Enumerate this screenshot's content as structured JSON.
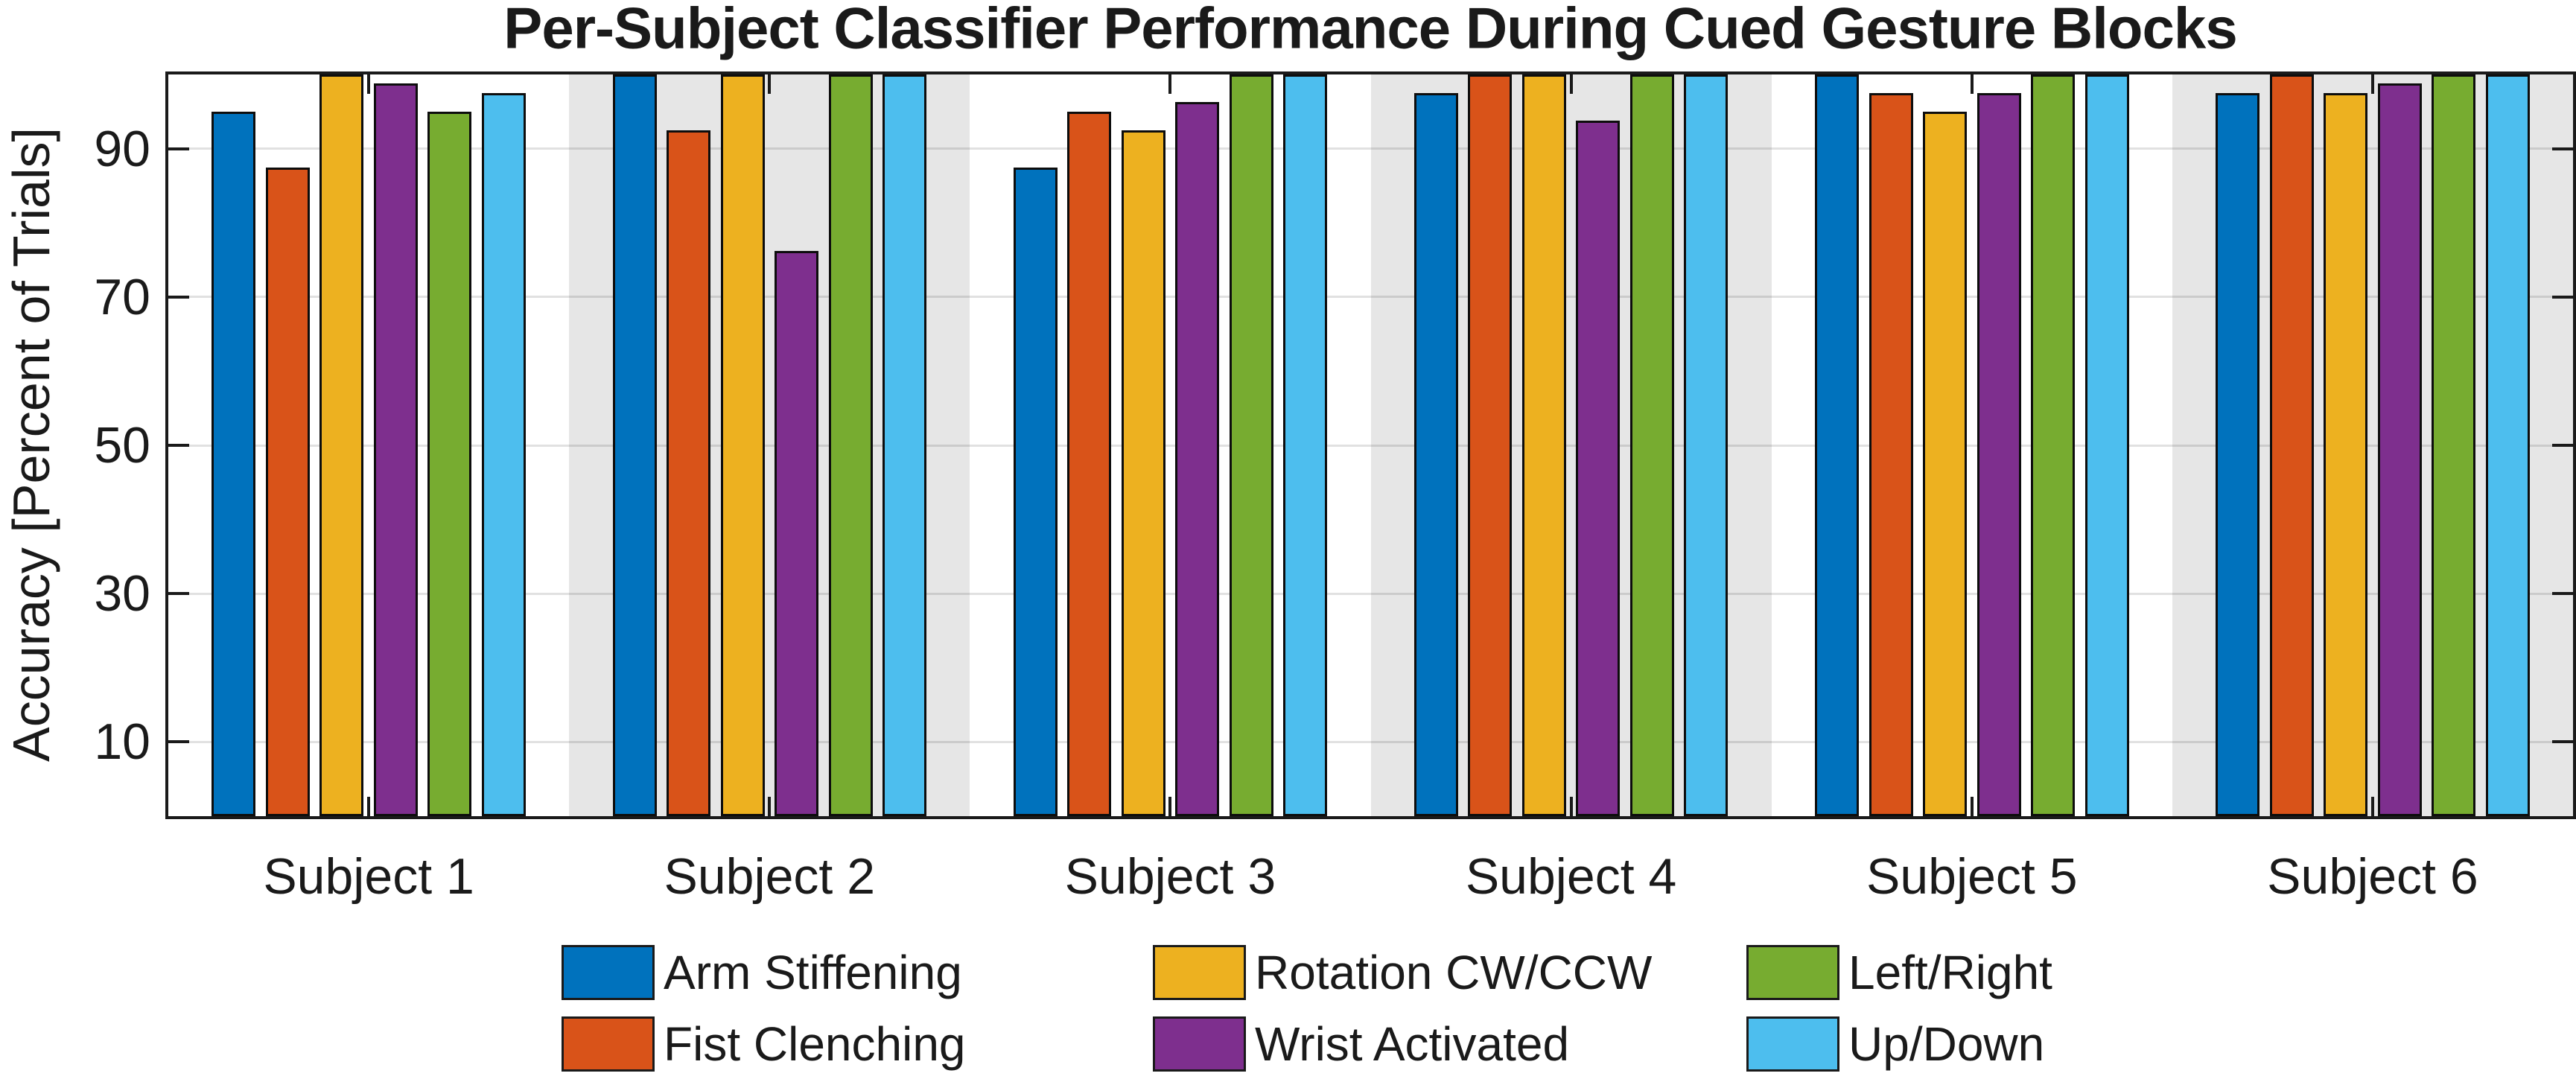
{
  "chart_data": {
    "type": "bar",
    "title": "Per-Subject Classifier Performance During Cued Gesture Blocks",
    "xlabel": "",
    "ylabel": "Accuracy [Percent of Trials]",
    "categories": [
      "Subject 1",
      "Subject 2",
      "Subject 3",
      "Subject 4",
      "Subject 5",
      "Subject 6"
    ],
    "series": [
      {
        "name": "Arm Stiffening",
        "color": "#0072BD",
        "values": [
          95,
          100,
          87.5,
          97.5,
          100,
          97.5
        ]
      },
      {
        "name": "Fist Clenching",
        "color": "#D95319",
        "values": [
          87.5,
          92.5,
          95,
          100,
          97.5,
          100
        ]
      },
      {
        "name": "Rotation CW/CCW",
        "color": "#EDB120",
        "values": [
          100,
          100,
          92.5,
          100,
          95,
          97.5
        ]
      },
      {
        "name": "Wrist Activated",
        "color": "#7E2F8E",
        "values": [
          98.75,
          76.25,
          96.25,
          93.75,
          97.5,
          98.75
        ]
      },
      {
        "name": "Left/Right",
        "color": "#77AC30",
        "values": [
          95,
          100,
          100,
          100,
          100,
          100
        ]
      },
      {
        "name": "Up/Down",
        "color": "#4DBEEE",
        "values": [
          97.5,
          100,
          100,
          100,
          100,
          100
        ]
      }
    ],
    "yticks": [
      10,
      30,
      50,
      70,
      90
    ],
    "ylim": [
      0,
      100
    ],
    "grid": true,
    "grid_color": "rgba(26,26,26,0.13)",
    "frame_color": "#1a1a1a",
    "band_color": "#E6E6E6",
    "banded_category_indexes": [
      1,
      3,
      5
    ],
    "legend_position": "below",
    "legend_columns": [
      [
        "Arm Stiffening",
        "Fist Clenching"
      ],
      [
        "Rotation CW/CCW",
        "Wrist Activated"
      ],
      [
        "Left/Right",
        "Up/Down"
      ]
    ]
  }
}
